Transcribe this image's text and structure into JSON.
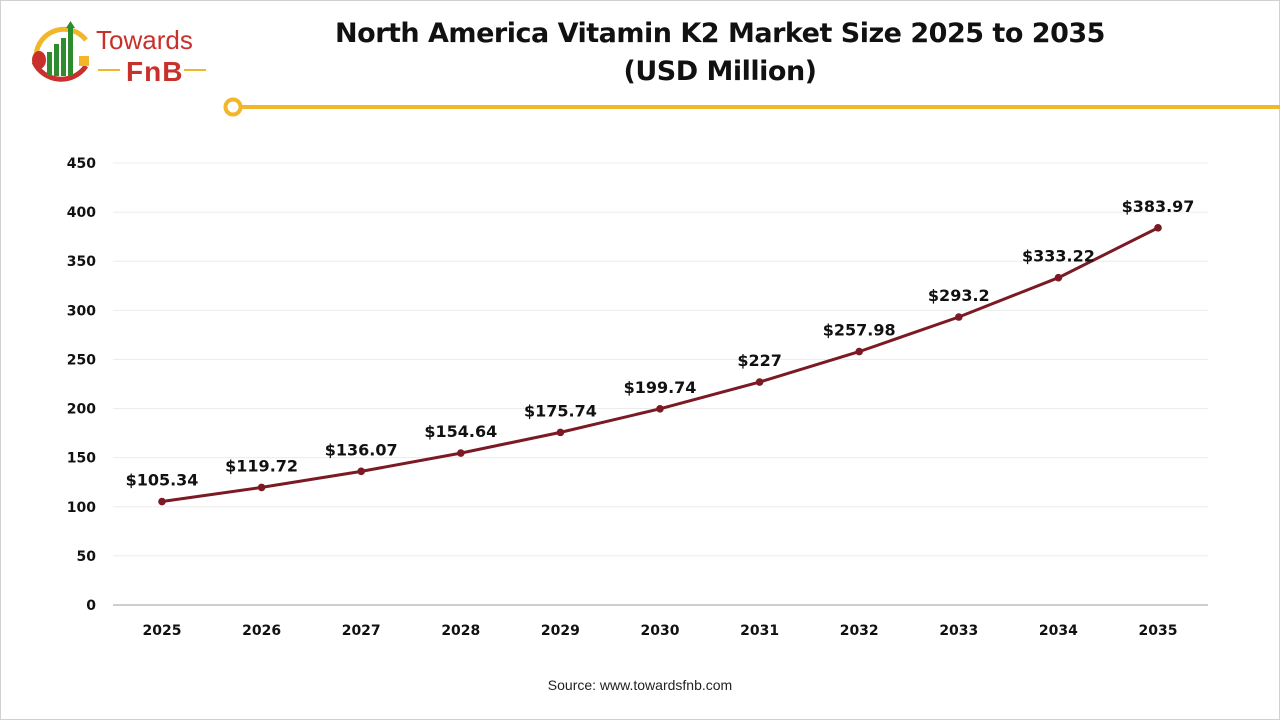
{
  "logo": {
    "line1": "Towards",
    "line2": "FnB"
  },
  "accent_color": "#f2b62a",
  "source": "Source: www.towardsfnb.com",
  "chart_data": {
    "type": "line",
    "title": "North America Vitamin K2 Market Size 2025 to 2035",
    "subtitle": "(USD Million)",
    "categories": [
      "2025",
      "2026",
      "2027",
      "2028",
      "2029",
      "2030",
      "2031",
      "2032",
      "2033",
      "2034",
      "2035"
    ],
    "values": [
      105.34,
      119.72,
      136.07,
      154.64,
      175.74,
      199.74,
      227,
      257.98,
      293.2,
      333.22,
      383.97
    ],
    "data_labels": [
      "$105.34",
      "$119.72",
      "$136.07",
      "$154.64",
      "$175.74",
      "$199.74",
      "$227",
      "$257.98",
      "$293.2",
      "$333.22",
      "$383.97"
    ],
    "yticks": [
      0,
      50,
      100,
      150,
      200,
      250,
      300,
      350,
      400,
      450
    ],
    "ylim": [
      0,
      450
    ],
    "grid": true,
    "line_color": "#7b1a24",
    "xlabel": "",
    "ylabel": ""
  }
}
